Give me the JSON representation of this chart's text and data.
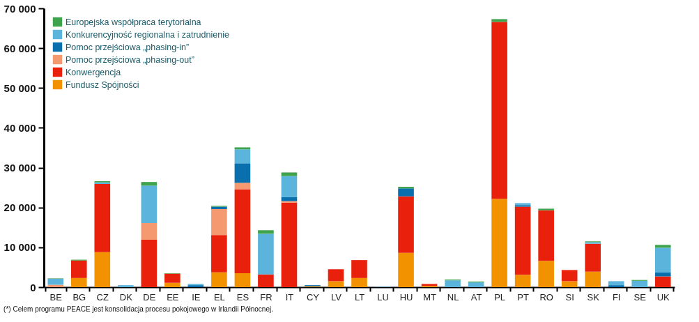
{
  "chart_data": {
    "type": "bar",
    "stacked": true,
    "legend": "top left",
    "categories": [
      "BE",
      "BG",
      "CZ",
      "DK",
      "DE",
      "EE",
      "IE",
      "EL",
      "ES",
      "FR",
      "IT",
      "CY",
      "LV",
      "LT",
      "LU",
      "HU",
      "MT",
      "NL",
      "AT",
      "PL",
      "PT",
      "RO",
      "SI",
      "SK",
      "FI",
      "SE",
      "UK"
    ],
    "ylim": [
      0,
      70000
    ],
    "yticks": [
      {
        "value": 0,
        "label": "0"
      },
      {
        "value": 10000,
        "label": "10 000"
      },
      {
        "value": 20000,
        "label": "20 000"
      },
      {
        "value": 30000,
        "label": "30 000"
      },
      {
        "value": 40000,
        "label": "40 000"
      },
      {
        "value": 50000,
        "label": "50 000"
      },
      {
        "value": 60000,
        "label": "60 000"
      },
      {
        "value": 70000,
        "label": "70 000"
      }
    ],
    "series": [
      {
        "name": "Fundusz Spójności",
        "color": "#f39200",
        "values": [
          0,
          2300,
          8800,
          0,
          0,
          1100,
          0,
          3700,
          3500,
          0,
          0,
          200,
          1500,
          2300,
          0,
          8600,
          300,
          0,
          0,
          22200,
          3100,
          6600,
          1500,
          3900,
          0,
          0,
          0
        ]
      },
      {
        "name": "Konwergencja",
        "color": "#e8200c",
        "values": [
          0,
          4400,
          17100,
          0,
          11900,
          2300,
          0,
          9400,
          21100,
          3200,
          21200,
          0,
          3000,
          4500,
          0,
          14200,
          500,
          0,
          0,
          44400,
          17100,
          12700,
          2800,
          7000,
          0,
          0,
          2700
        ]
      },
      {
        "name": "Pomoc przejściowa „phasing-out”",
        "color": "#f59a70",
        "values": [
          600,
          0,
          0,
          0,
          4200,
          0,
          0,
          6500,
          1600,
          0,
          400,
          0,
          0,
          0,
          0,
          0,
          0,
          0,
          0,
          0,
          0,
          0,
          0,
          0,
          0,
          0,
          0
        ]
      },
      {
        "name": "Pomoc przejściowa „phasing-in”",
        "color": "#0a6fad",
        "values": [
          0,
          0,
          0,
          0,
          0,
          0,
          500,
          600,
          4900,
          0,
          1000,
          300,
          0,
          0,
          0,
          2000,
          0,
          0,
          0,
          0,
          400,
          0,
          0,
          0,
          500,
          0,
          1000
        ]
      },
      {
        "name": "Konkurencyjność regionalna i zatrudnienie",
        "color": "#5ab4dc",
        "values": [
          1500,
          0,
          400,
          500,
          9400,
          0,
          300,
          0,
          3500,
          10200,
          5300,
          0,
          0,
          0,
          100,
          0,
          0,
          1700,
          1200,
          0,
          500,
          0,
          0,
          400,
          1000,
          1600,
          6200
        ]
      },
      {
        "name": "Europejska współpraca terytorialna",
        "color": "#3fa34d",
        "values": [
          100,
          200,
          300,
          null,
          900,
          100,
          null,
          200,
          500,
          900,
          900,
          0,
          0,
          0,
          0,
          400,
          0,
          200,
          200,
          700,
          0,
          400,
          0,
          200,
          null,
          200,
          700
        ]
      }
    ],
    "annotations": [
      "(*) Celem programu PEACE jest konsolidacja procesu pokojowego w Irlandii Północnej."
    ]
  }
}
